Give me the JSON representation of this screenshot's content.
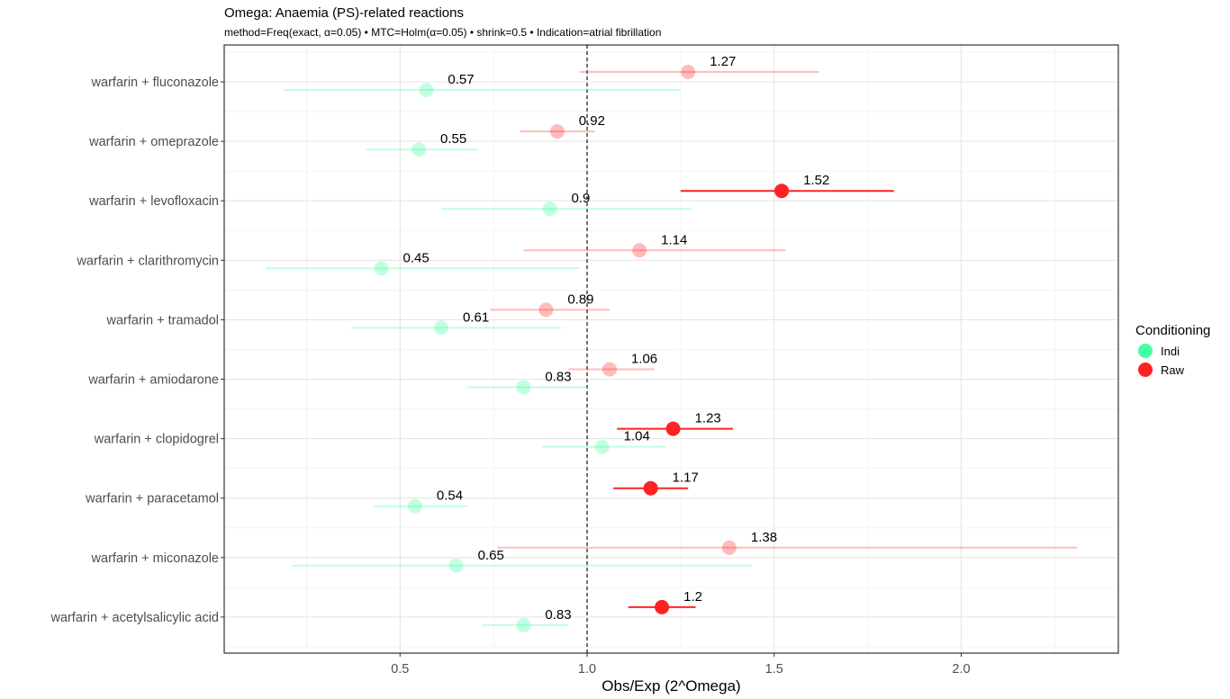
{
  "chart_data": {
    "type": "scatter",
    "title": "Omega: Anaemia (PS)-related reactions",
    "subtitle": "method=Freq(exact, α=0.05) • MTC=Holm(α=0.05) • shrink=0.5 • Indication=atrial fibrillation",
    "xlabel": "Obs/Exp (2^Omega)",
    "ylabel": "",
    "xlim": [
      0.03,
      2.42
    ],
    "xticks": [
      "0.5",
      "1.0",
      "1.5",
      "2.0"
    ],
    "xtick_values": [
      0.5,
      1.0,
      1.5,
      2.0
    ],
    "reference_line": 1.0,
    "grid": true,
    "legend": {
      "title": "Conditioning",
      "position": "right",
      "entries": [
        {
          "name": "Indi",
          "color": "#33ff99"
        },
        {
          "name": "Raw",
          "color": "#ff2222"
        }
      ]
    },
    "categories": [
      "warfarin + fluconazole",
      "warfarin + omeprazole",
      "warfarin + levofloxacin",
      "warfarin + clarithromycin",
      "warfarin + tramadol",
      "warfarin + amiodarone",
      "warfarin + clopidogrel",
      "warfarin + paracetamol",
      "warfarin + miconazole",
      "warfarin + acetylsalicylic acid"
    ],
    "series": [
      {
        "name": "Raw",
        "values": [
          1.27,
          0.92,
          1.52,
          1.14,
          0.89,
          1.06,
          1.23,
          1.17,
          1.38,
          1.2
        ],
        "lower": [
          0.98,
          0.82,
          1.25,
          0.83,
          0.74,
          0.95,
          1.08,
          1.07,
          0.76,
          1.11
        ],
        "upper": [
          1.62,
          1.02,
          1.82,
          1.53,
          1.06,
          1.18,
          1.39,
          1.27,
          2.31,
          1.29
        ],
        "labels": [
          "1.27",
          "0.92",
          "1.52",
          "1.14",
          "0.89",
          "1.06",
          "1.23",
          "1.17",
          "1.38",
          "1.2"
        ],
        "significant": [
          false,
          false,
          true,
          false,
          false,
          false,
          true,
          true,
          false,
          true
        ]
      },
      {
        "name": "Indi",
        "values": [
          0.57,
          0.55,
          0.9,
          0.45,
          0.61,
          0.83,
          1.04,
          0.54,
          0.65,
          0.83
        ],
        "lower": [
          0.19,
          0.41,
          0.61,
          0.14,
          0.37,
          0.68,
          0.88,
          0.43,
          0.21,
          0.72
        ],
        "upper": [
          1.25,
          0.71,
          1.28,
          0.98,
          0.93,
          1.0,
          1.21,
          0.68,
          1.44,
          0.95
        ],
        "labels": [
          "0.57",
          "0.55",
          "0.9",
          "0.45",
          "0.61",
          "0.83",
          "1.04",
          "0.54",
          "0.65",
          "0.83"
        ],
        "significant": [
          false,
          false,
          false,
          false,
          false,
          false,
          false,
          false,
          false,
          false
        ]
      }
    ]
  }
}
